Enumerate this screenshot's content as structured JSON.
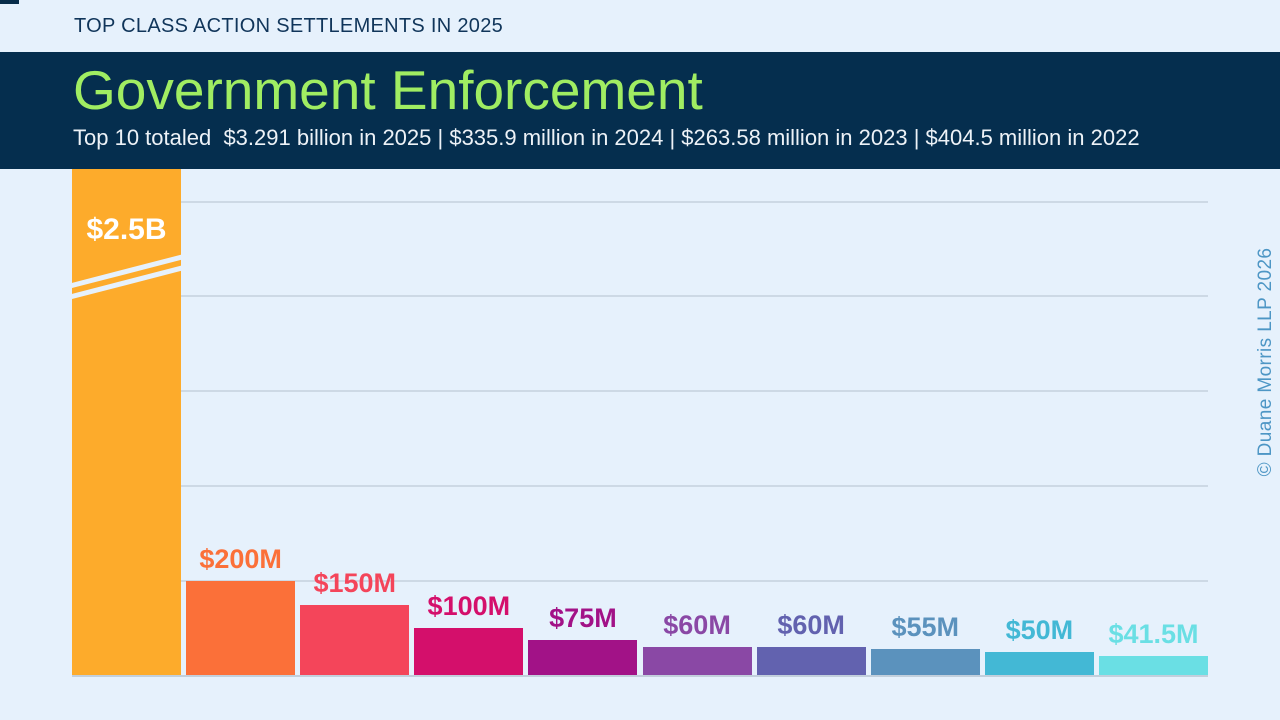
{
  "header": {
    "eyebrow": "TOP CLASS ACTION SETTLEMENTS IN 2025",
    "title": "Government Enforcement",
    "subtitle": "Top 10 totaled  $3.291 billion in 2025 | $335.9 million in 2024 | $263.58 million in 2023 | $404.5 million in 2022"
  },
  "watermark": "© Duane Morris LLP 2026",
  "colors": {
    "background": "#E6F1FC",
    "banner": "#052E4E",
    "title_green": "#A0ED62",
    "eyebrow_navy": "#10355A",
    "subtitle_white": "#EDF2F7",
    "gridline": "#CDD9E5",
    "baseline": "#C2CFDC",
    "watermark_blue": "#4D96C5"
  },
  "chart_data": {
    "type": "bar",
    "title": "Government Enforcement - Top Class Action Settlements in 2025",
    "unit": "USD millions",
    "grid": true,
    "axis_break_on_first_bar": true,
    "totals": {
      "2025": "$3.291 billion",
      "2024": "$335.9 million",
      "2023": "$263.58 million",
      "2022": "$404.5 million"
    },
    "categories": [
      "$2.5B",
      "$200M",
      "$150M",
      "$100M",
      "$75M",
      "$60M",
      "$60M",
      "$55M",
      "$50M",
      "$41.5M"
    ],
    "values_musd": [
      2500,
      200,
      150,
      100,
      75,
      60,
      60,
      55,
      50,
      41.5
    ],
    "bars": [
      {
        "label": "$2.5B",
        "value_musd": 2500,
        "color": "#FDAB2B",
        "label_color": "#FFFFFF",
        "label_inside": true,
        "axis_break": true
      },
      {
        "label": "$200M",
        "value_musd": 200,
        "color": "#FB7039",
        "label_color": "#FB7039",
        "label_inside": false,
        "axis_break": false
      },
      {
        "label": "$150M",
        "value_musd": 150,
        "color": "#F4455A",
        "label_color": "#F4455A",
        "label_inside": false,
        "axis_break": false
      },
      {
        "label": "$100M",
        "value_musd": 100,
        "color": "#D40F6B",
        "label_color": "#D40F6B",
        "label_inside": false,
        "axis_break": false
      },
      {
        "label": "$75M",
        "value_musd": 75,
        "color": "#A21287",
        "label_color": "#A21287",
        "label_inside": false,
        "axis_break": false
      },
      {
        "label": "$60M",
        "value_musd": 60,
        "color": "#8A48A5",
        "label_color": "#8A48A5",
        "label_inside": false,
        "axis_break": false
      },
      {
        "label": "$60M",
        "value_musd": 60,
        "color": "#6262AF",
        "label_color": "#6262AF",
        "label_inside": false,
        "axis_break": false
      },
      {
        "label": "$55M",
        "value_musd": 55,
        "color": "#5B92BD",
        "label_color": "#5B92BD",
        "label_inside": false,
        "axis_break": false
      },
      {
        "label": "$50M",
        "value_musd": 50,
        "color": "#43B8D5",
        "label_color": "#43B8D5",
        "label_inside": false,
        "axis_break": false
      },
      {
        "label": "$41.5M",
        "value_musd": 41.5,
        "color": "#6ADFE4",
        "label_color": "#6ADFE4",
        "label_inside": false,
        "axis_break": false
      }
    ]
  }
}
